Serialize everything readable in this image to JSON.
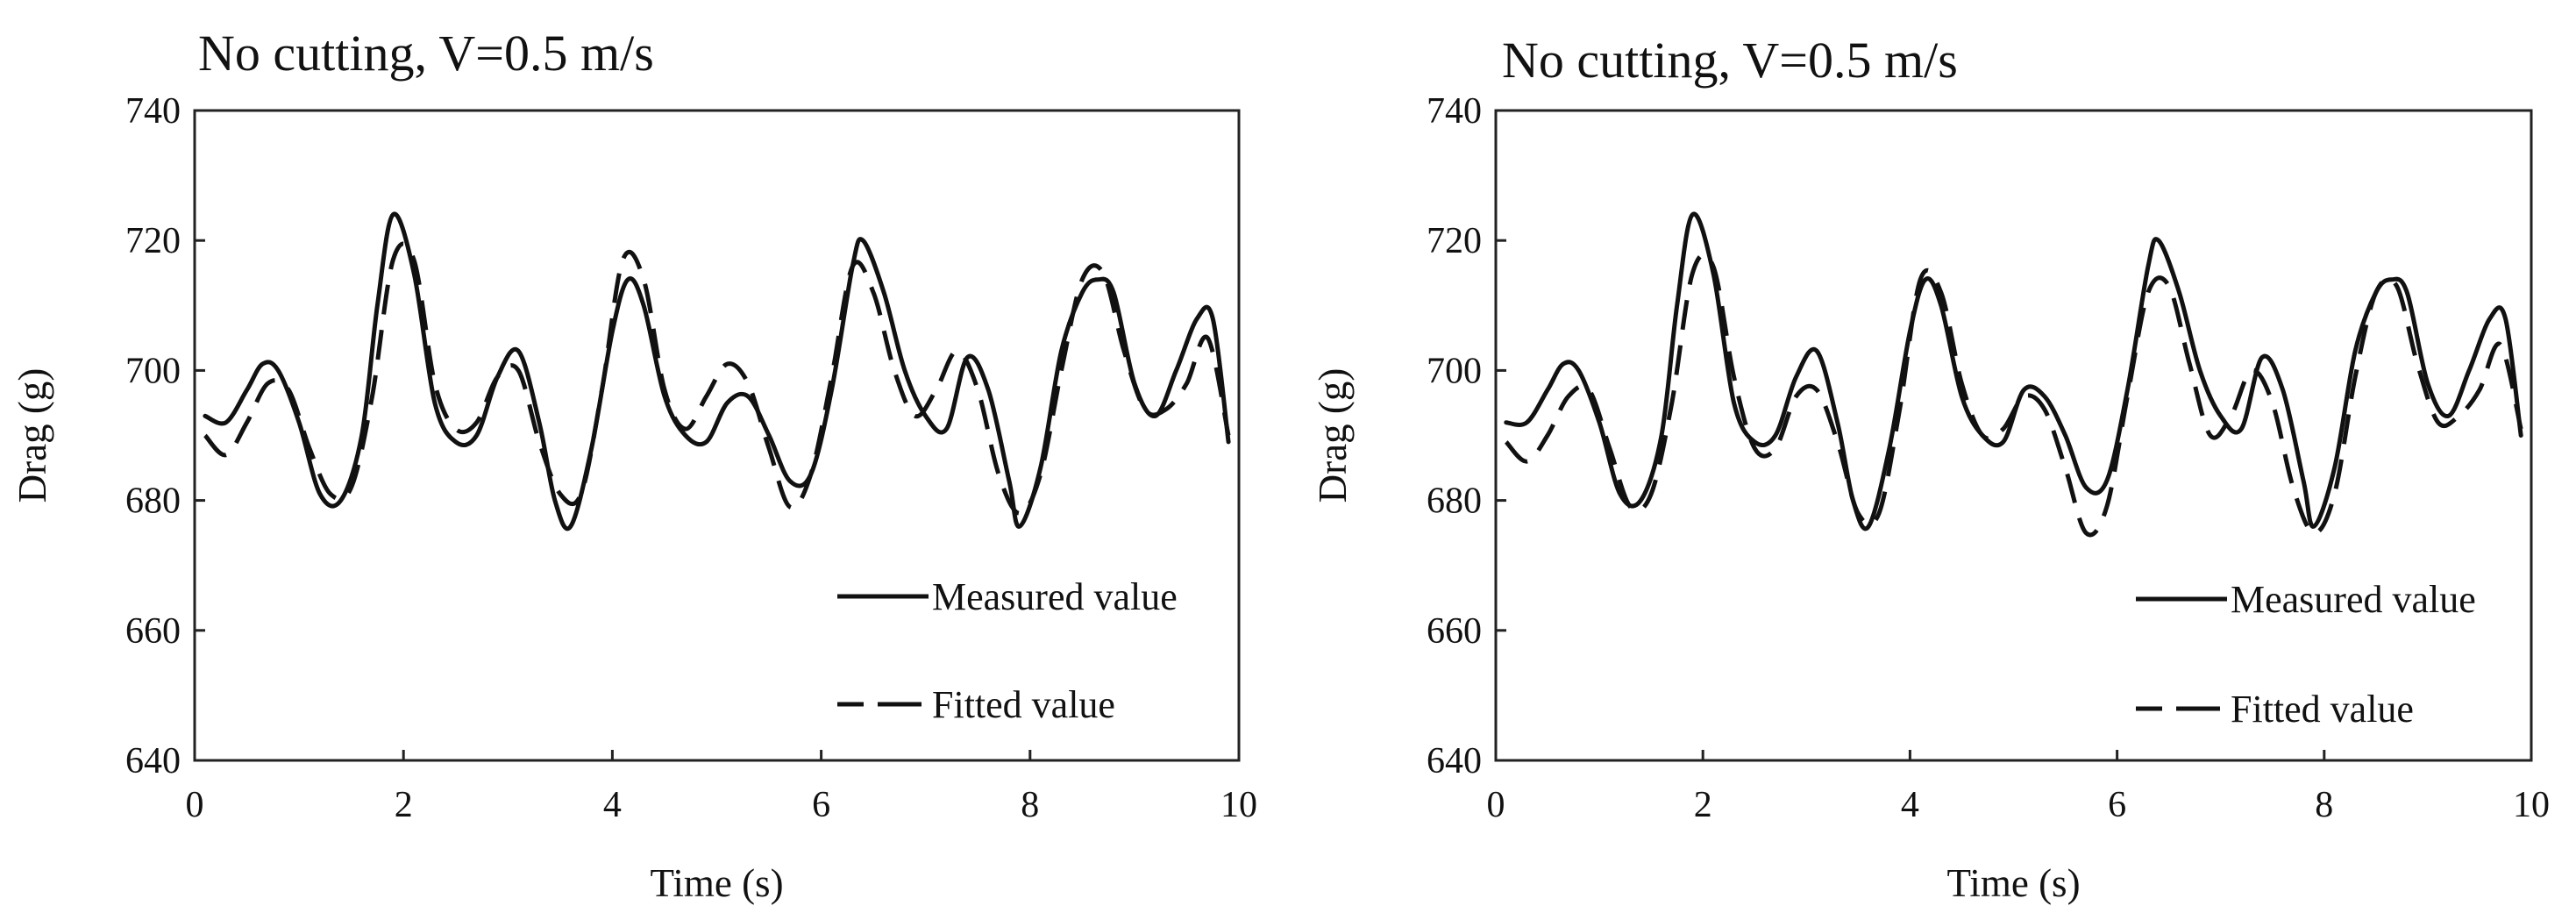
{
  "chart_data": [
    {
      "type": "line",
      "title": "No cutting, V=0.5 m/s",
      "xlabel": "Time (s)",
      "ylabel": "Drag (g)",
      "xlim": [
        0,
        10
      ],
      "ylim": [
        640,
        740
      ],
      "xticks": [
        "0",
        "2",
        "4",
        "6",
        "8",
        "10"
      ],
      "yticks": [
        "640",
        "660",
        "680",
        "700",
        "720",
        "740"
      ],
      "grid": false,
      "legend": "bottom-right",
      "series": [
        {
          "name": "Measured value",
          "style": "solid",
          "x": [
            0.1,
            0.3,
            0.5,
            0.65,
            0.8,
            1.0,
            1.2,
            1.4,
            1.6,
            1.75,
            1.9,
            2.1,
            2.3,
            2.5,
            2.7,
            2.9,
            3.1,
            3.3,
            3.45,
            3.6,
            3.8,
            4.0,
            4.15,
            4.3,
            4.5,
            4.7,
            4.9,
            5.1,
            5.3,
            5.5,
            5.7,
            5.9,
            6.1,
            6.3,
            6.4,
            6.6,
            6.8,
            7.0,
            7.2,
            7.4,
            7.6,
            7.8,
            7.9,
            8.1,
            8.3,
            8.5,
            8.65,
            8.8,
            9.0,
            9.2,
            9.4,
            9.6,
            9.75,
            9.9
          ],
          "values": [
            693,
            692,
            697,
            701,
            700,
            692,
            681,
            680,
            690,
            710,
            724,
            715,
            695,
            689,
            690,
            699,
            703,
            692,
            680,
            676,
            688,
            706,
            714,
            710,
            696,
            690,
            689,
            695,
            696,
            690,
            683,
            684,
            697,
            716,
            720,
            712,
            700,
            693,
            691,
            702,
            697,
            683,
            676,
            685,
            703,
            712,
            714,
            712,
            698,
            693,
            700,
            708,
            708,
            689
          ]
        },
        {
          "name": "Fitted value",
          "style": "dashed",
          "x": [
            0.1,
            0.3,
            0.5,
            0.7,
            0.9,
            1.1,
            1.3,
            1.5,
            1.7,
            1.9,
            2.1,
            2.3,
            2.5,
            2.7,
            2.9,
            3.1,
            3.3,
            3.5,
            3.7,
            3.9,
            4.1,
            4.3,
            4.5,
            4.7,
            4.9,
            5.1,
            5.3,
            5.5,
            5.7,
            5.9,
            6.1,
            6.3,
            6.5,
            6.7,
            6.9,
            7.1,
            7.3,
            7.5,
            7.7,
            7.9,
            8.1,
            8.3,
            8.5,
            8.7,
            8.9,
            9.1,
            9.3,
            9.5,
            9.7,
            9.9
          ],
          "values": [
            690,
            687,
            692,
            698,
            697,
            688,
            681,
            682,
            696,
            717,
            717,
            698,
            691,
            692,
            699,
            700,
            689,
            681,
            681,
            697,
            717,
            714,
            697,
            691,
            696,
            701,
            698,
            688,
            679,
            684,
            699,
            716,
            712,
            700,
            693,
            697,
            703,
            697,
            684,
            678,
            684,
            700,
            714,
            715,
            703,
            694,
            694,
            698,
            705,
            690
          ]
        }
      ]
    },
    {
      "type": "line",
      "title": "No cutting, V=0.5 m/s",
      "xlabel": "Time (s)",
      "ylabel": "Drag (g)",
      "xlim": [
        0,
        10
      ],
      "ylim": [
        640,
        740
      ],
      "xticks": [
        "0",
        "2",
        "4",
        "6",
        "8",
        "10"
      ],
      "yticks": [
        "640",
        "660",
        "680",
        "700",
        "720",
        "740"
      ],
      "grid": false,
      "legend": "bottom-right",
      "series": [
        {
          "name": "Measured value",
          "style": "solid",
          "x": [
            0.1,
            0.3,
            0.5,
            0.65,
            0.8,
            1.0,
            1.2,
            1.4,
            1.6,
            1.75,
            1.9,
            2.1,
            2.3,
            2.5,
            2.7,
            2.9,
            3.1,
            3.3,
            3.45,
            3.6,
            3.8,
            4.0,
            4.15,
            4.3,
            4.5,
            4.7,
            4.9,
            5.1,
            5.3,
            5.5,
            5.7,
            5.9,
            6.1,
            6.3,
            6.4,
            6.6,
            6.8,
            7.0,
            7.2,
            7.4,
            7.6,
            7.8,
            7.9,
            8.1,
            8.3,
            8.5,
            8.65,
            8.8,
            9.0,
            9.2,
            9.4,
            9.6,
            9.75,
            9.9
          ],
          "values": [
            692,
            692,
            697,
            701,
            700,
            692,
            681,
            680,
            690,
            710,
            724,
            715,
            695,
            689,
            690,
            699,
            703,
            692,
            680,
            676,
            688,
            706,
            714,
            710,
            696,
            690,
            689,
            697,
            696,
            690,
            682,
            683,
            697,
            716,
            720,
            712,
            700,
            693,
            691,
            702,
            697,
            683,
            676,
            685,
            703,
            712,
            714,
            712,
            698,
            693,
            700,
            708,
            708,
            690
          ]
        },
        {
          "name": "Fitted value",
          "style": "dashed",
          "x": [
            0.1,
            0.3,
            0.5,
            0.7,
            0.9,
            1.1,
            1.3,
            1.5,
            1.7,
            1.9,
            2.1,
            2.3,
            2.5,
            2.7,
            2.9,
            3.1,
            3.3,
            3.5,
            3.7,
            3.9,
            4.1,
            4.3,
            4.5,
            4.7,
            4.9,
            5.1,
            5.3,
            5.5,
            5.7,
            5.9,
            6.1,
            6.3,
            6.5,
            6.7,
            6.9,
            7.1,
            7.3,
            7.5,
            7.7,
            7.9,
            8.1,
            8.3,
            8.5,
            8.7,
            8.9,
            9.1,
            9.3,
            9.5,
            9.7,
            9.9
          ],
          "values": [
            689,
            686,
            690,
            696,
            697,
            688,
            679,
            681,
            695,
            715,
            716,
            699,
            688,
            688,
            696,
            697,
            689,
            678,
            678,
            694,
            714,
            712,
            698,
            690,
            691,
            696,
            694,
            685,
            675,
            679,
            696,
            712,
            713,
            701,
            690,
            693,
            700,
            695,
            682,
            675,
            681,
            699,
            712,
            713,
            701,
            692,
            693,
            697,
            704,
            691
          ]
        }
      ]
    }
  ]
}
